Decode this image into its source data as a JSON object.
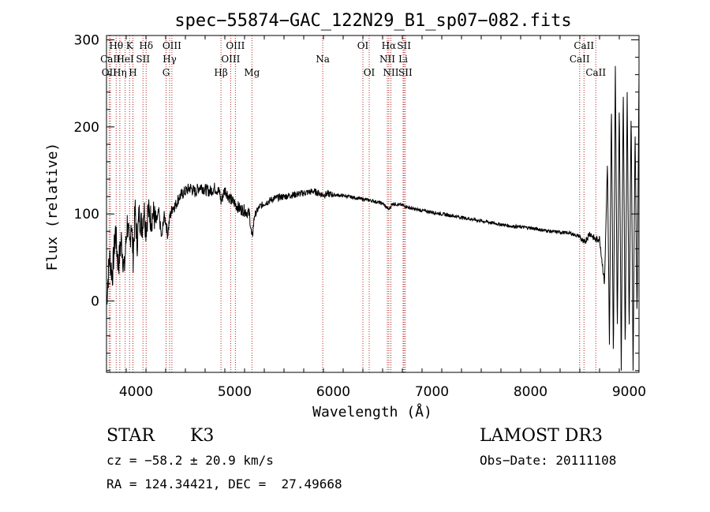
{
  "chart_data": {
    "type": "line",
    "title": "spec−55874−GAC_122N29_B1_sp07−082.fits",
    "xlabel": "Wavelength (Å)",
    "ylabel": "Flux (relative)",
    "xlim": [
      3700,
      9100
    ],
    "ylim": [
      -82,
      305
    ],
    "xticks": [
      "4000",
      "5000",
      "6000",
      "7000",
      "8000",
      "9000"
    ],
    "yticks": [
      "0",
      "100",
      "200",
      "300"
    ],
    "grid": false,
    "line_color": "#000000",
    "marker_color": "#b22222",
    "spectral_lines": [
      {
        "label": "Hθ",
        "wavelength": 3798,
        "row": 1
      },
      {
        "label": "OII",
        "wavelength": 3727,
        "row": 3
      },
      {
        "label": "Hη",
        "wavelength": 3835,
        "row": 3
      },
      {
        "label": "K",
        "wavelength": 3934,
        "row": 1
      },
      {
        "label": "CaII",
        "wavelength": 3740,
        "row": 2
      },
      {
        "label": "HeI",
        "wavelength": 3889,
        "row": 2
      },
      {
        "label": "H",
        "wavelength": 3968,
        "row": 3
      },
      {
        "label": "SII",
        "wavelength": 4070,
        "row": 2
      },
      {
        "label": "Hδ",
        "wavelength": 4102,
        "row": 1
      },
      {
        "label": "OIII",
        "wavelength": 4363,
        "row": 1
      },
      {
        "label": "Hγ",
        "wavelength": 4340,
        "row": 2
      },
      {
        "label": "G",
        "wavelength": 4304,
        "row": 3
      },
      {
        "label": "Hβ",
        "wavelength": 4861,
        "row": 3
      },
      {
        "label": "OIII",
        "wavelength": 5007,
        "row": 1
      },
      {
        "label": "OIII",
        "wavelength": 4959,
        "row": 2
      },
      {
        "label": "Mg",
        "wavelength": 5175,
        "row": 3
      },
      {
        "label": "Na",
        "wavelength": 5893,
        "row": 2
      },
      {
        "label": "OI",
        "wavelength": 6300,
        "row": 1
      },
      {
        "label": "OI",
        "wavelength": 6364,
        "row": 3
      },
      {
        "label": "Hα",
        "wavelength": 6563,
        "row": 1
      },
      {
        "label": "NII",
        "wavelength": 6548,
        "row": 2
      },
      {
        "label": "NII",
        "wavelength": 6584,
        "row": 3
      },
      {
        "label": "SII",
        "wavelength": 6717,
        "row": 1
      },
      {
        "label": "Li",
        "wavelength": 6708,
        "row": 2
      },
      {
        "label": "SII",
        "wavelength": 6731,
        "row": 3
      },
      {
        "label": "CaII",
        "wavelength": 8542,
        "row": 1
      },
      {
        "label": "CaII",
        "wavelength": 8498,
        "row": 2
      },
      {
        "label": "CaII",
        "wavelength": 8662,
        "row": 3
      }
    ],
    "series": [
      {
        "x": [
          3700,
          3730,
          3760,
          3790,
          3820,
          3850,
          3880,
          3910,
          3935,
          3950,
          3970,
          3990,
          4010,
          4030,
          4060,
          4080,
          4100,
          4120,
          4150,
          4180,
          4200,
          4230,
          4260,
          4280,
          4300,
          4320,
          4340,
          4370,
          4400,
          4430,
          4460,
          4500,
          4550,
          4600,
          4650,
          4700,
          4750,
          4800,
          4850,
          4861,
          4900,
          4950,
          5000,
          5050,
          5100,
          5150,
          5175,
          5200,
          5250,
          5300,
          5400,
          5500,
          5600,
          5700,
          5800,
          5893,
          5950,
          6000,
          6100,
          6200,
          6300,
          6400,
          6500,
          6563,
          6600,
          6700,
          6800,
          7000,
          7200,
          7400,
          7600,
          7800,
          8000,
          8200,
          8400,
          8498,
          8542,
          8600,
          8662,
          8700,
          8750,
          8780,
          8800,
          8820,
          8840,
          8860,
          8880,
          8900,
          8920,
          8940,
          8960,
          8980,
          9000,
          9020,
          9040,
          9060,
          9080,
          9100
        ],
        "y": [
          0,
          50,
          30,
          80,
          40,
          70,
          35,
          90,
          60,
          95,
          50,
          105,
          65,
          100,
          85,
          108,
          82,
          104,
          95,
          100,
          88,
          102,
          70,
          98,
          92,
          76,
          95,
          108,
          110,
          118,
          122,
          126,
          130,
          125,
          132,
          128,
          126,
          130,
          124,
          114,
          128,
          118,
          112,
          106,
          104,
          100,
          70,
          98,
          108,
          112,
          118,
          120,
          122,
          124,
          126,
          122,
          123,
          122,
          121,
          119,
          117,
          115,
          112,
          105,
          112,
          110,
          106,
          102,
          98,
          94,
          90,
          86,
          84,
          80,
          78,
          74,
          66,
          78,
          70,
          72,
          20,
          160,
          -50,
          230,
          -70,
          270,
          -40,
          230,
          -80,
          250,
          -60,
          240,
          -40,
          220,
          -80,
          200,
          -20,
          260
        ]
      }
    ]
  },
  "footer": {
    "object_class": "STAR",
    "subclass": "K3",
    "survey": "LAMOST DR3",
    "redshift_line": "cz = −58.2 ± 20.9 km/s",
    "obs_date": "Obs−Date: 20111108",
    "coords": "RA = 124.34421, DEC =  27.49668"
  }
}
